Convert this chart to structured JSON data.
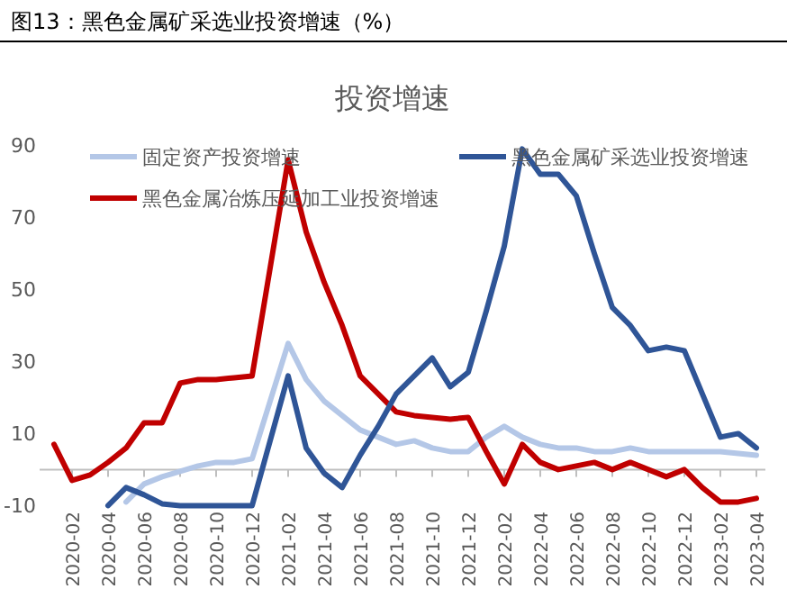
{
  "chart_data": {
    "type": "line",
    "title": "图13：黑色金属矿采选业投资增速（%）",
    "subtitle": "投资增速",
    "categories": [
      null,
      "2020-02",
      null,
      "2020-04",
      null,
      "2020-06",
      null,
      "2020-08",
      null,
      "2020-10",
      null,
      "2020-12",
      null,
      "2021-02",
      null,
      "2021-04",
      null,
      "2021-06",
      null,
      "2021-08",
      null,
      "2021-10",
      null,
      "2021-12",
      null,
      "2022-02",
      null,
      "2022-04",
      null,
      "2022-06",
      null,
      "2022-08",
      null,
      "2022-10",
      null,
      "2022-12",
      null,
      "2023-02",
      null,
      "2023-04"
    ],
    "series": [
      {
        "name": "固定资产投资增速",
        "color": "#b4c7e7",
        "values": [
          null,
          null,
          null,
          null,
          -9,
          -4,
          -2,
          -0.5,
          1,
          2,
          2,
          3,
          null,
          35,
          25,
          19,
          15,
          11,
          9,
          7,
          8,
          6,
          5,
          5,
          9,
          12,
          9,
          7,
          6,
          6,
          5,
          5,
          6,
          5,
          5,
          5,
          5,
          5,
          4.5,
          4
        ]
      },
      {
        "name": "黑色金属冶炼压延加工业投资增速",
        "color": "#c00000",
        "values": [
          7,
          -3,
          -1.5,
          2,
          6,
          13,
          13,
          24,
          25,
          25,
          25.5,
          26,
          null,
          86,
          66,
          52,
          40,
          26,
          21,
          16,
          15,
          14.5,
          14,
          14.5,
          5,
          -4,
          7,
          2,
          0,
          1,
          2,
          0,
          2,
          0,
          -2,
          0,
          -5,
          -9,
          -9,
          -8
        ]
      },
      {
        "name": "黑色金属矿采选业投资增速",
        "color": "#2f5597",
        "values": [
          null,
          null,
          null,
          -10,
          -5,
          -7,
          -9.5,
          -10,
          null,
          null,
          -10,
          -10,
          null,
          26,
          6,
          -1,
          -5,
          4,
          12,
          21,
          26,
          31,
          23,
          27,
          44,
          62,
          89,
          82,
          82,
          76,
          60,
          45,
          40,
          33,
          34,
          33,
          21,
          9,
          10,
          6
        ]
      }
    ],
    "ylim": [
      -10,
      90
    ],
    "yticks": [
      -10,
      10,
      30,
      50,
      70,
      90
    ],
    "grid": false,
    "legend": "top",
    "line_style": "solid",
    "marker": "none"
  }
}
